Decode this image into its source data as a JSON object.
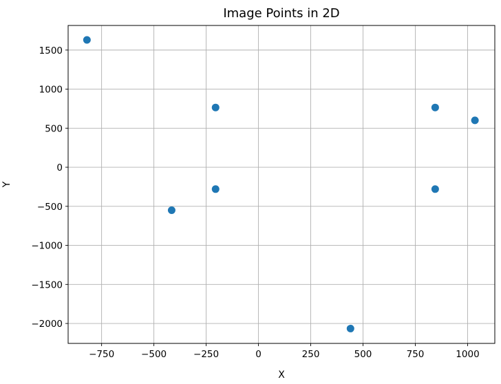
{
  "chart_data": {
    "type": "scatter",
    "title": "Image Points in 2D",
    "xlabel": "X",
    "ylabel": "Y",
    "xlim": [
      -910,
      1130
    ],
    "ylim": [
      -2255,
      1815
    ],
    "grid": true,
    "marker_color": "#1f77b4",
    "x_ticks": [
      {
        "value": -750,
        "label": "−750"
      },
      {
        "value": -500,
        "label": "−500"
      },
      {
        "value": -250,
        "label": "−250"
      },
      {
        "value": 0,
        "label": "0"
      },
      {
        "value": 250,
        "label": "250"
      },
      {
        "value": 500,
        "label": "500"
      },
      {
        "value": 750,
        "label": "750"
      },
      {
        "value": 1000,
        "label": "1000"
      }
    ],
    "y_ticks": [
      {
        "value": -2000,
        "label": "−2000"
      },
      {
        "value": -1500,
        "label": "−1500"
      },
      {
        "value": -1000,
        "label": "−1000"
      },
      {
        "value": -500,
        "label": "−500"
      },
      {
        "value": 0,
        "label": "0"
      },
      {
        "value": 500,
        "label": "500"
      },
      {
        "value": 1000,
        "label": "1000"
      },
      {
        "value": 1500,
        "label": "1500"
      }
    ],
    "points": [
      {
        "x": -820,
        "y": 1630
      },
      {
        "x": -205,
        "y": 765
      },
      {
        "x": -205,
        "y": -280
      },
      {
        "x": -415,
        "y": -550
      },
      {
        "x": 440,
        "y": -2065
      },
      {
        "x": 845,
        "y": 765
      },
      {
        "x": 845,
        "y": -280
      },
      {
        "x": 1035,
        "y": 600
      }
    ]
  }
}
